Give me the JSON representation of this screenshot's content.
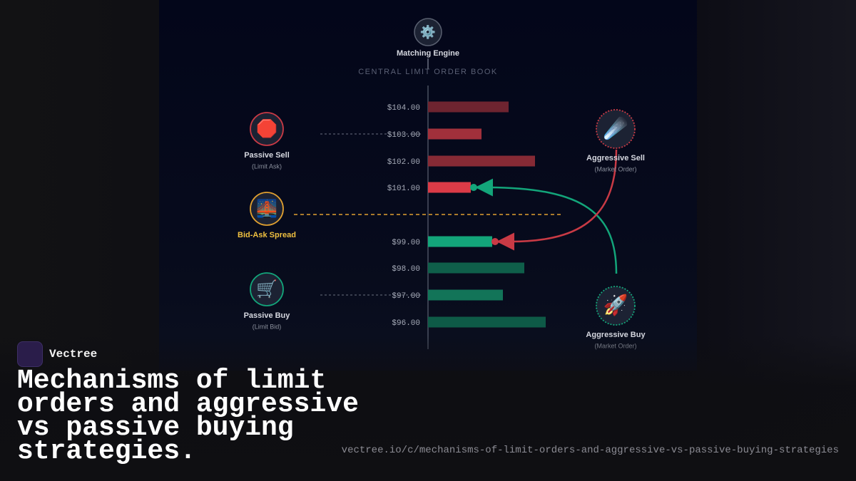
{
  "brand": "Vectree",
  "title": "Mechanisms of limit orders and aggressive vs passive buying strategies.",
  "url": "vectree.io/c/mechanisms-of-limit-orders-and-aggressive-vs-passive-buying-strategies",
  "diagram": {
    "engine": {
      "icon": "⚙️",
      "label": "Matching Engine"
    },
    "book_title": "CENTRAL LIMIT ORDER BOOK",
    "asks": [
      {
        "price": "$104.00",
        "size": 113
      },
      {
        "price": "$103.00",
        "size": 75
      },
      {
        "price": "$102.00",
        "size": 150
      },
      {
        "price": "$101.00",
        "size": 60
      }
    ],
    "bids": [
      {
        "price": "$99.00",
        "size": 90
      },
      {
        "price": "$98.00",
        "size": 135
      },
      {
        "price": "$97.00",
        "size": 105
      },
      {
        "price": "$96.00",
        "size": 165
      }
    ],
    "nodes": [
      {
        "icon": "🛑",
        "label": "Passive Sell",
        "sublabel": "(Limit Ask)"
      },
      {
        "icon": "🌉",
        "label": "Bid-Ask Spread"
      },
      {
        "icon": "🛒",
        "label": "Passive Buy",
        "sublabel": "(Limit Bid)"
      },
      {
        "icon": "☄️",
        "label": "Aggressive Sell",
        "sublabel": "(Market Order)"
      },
      {
        "icon": "🚀",
        "label": "Aggressive Buy",
        "sublabel": "(Market Order)"
      }
    ]
  }
}
